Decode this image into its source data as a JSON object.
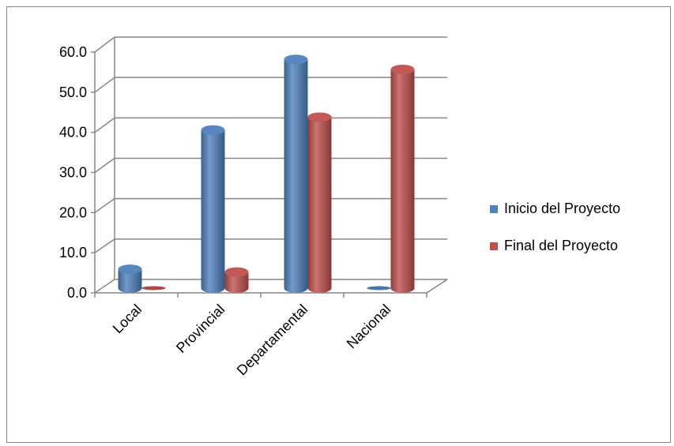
{
  "chart_data": {
    "type": "bar",
    "categories": [
      "Local",
      "Provincial",
      "Departamental",
      "Nacional"
    ],
    "series": [
      {
        "name": "Inicio del Proyecto",
        "color": "#4f81bd",
        "values": [
          4.7,
          39.4,
          57.0,
          0.0
        ]
      },
      {
        "name": "Final del Proyecto",
        "color": "#c0504d",
        "values": [
          0.0,
          4.0,
          42.6,
          54.5
        ]
      }
    ],
    "y_ticks": [
      "0.0",
      "10.0",
      "20.0",
      "30.0",
      "40.0",
      "50.0",
      "60.0"
    ],
    "ylim": [
      0,
      60
    ],
    "grid": true,
    "legend": "right",
    "title": "",
    "xlabel": "",
    "ylabel": ""
  }
}
